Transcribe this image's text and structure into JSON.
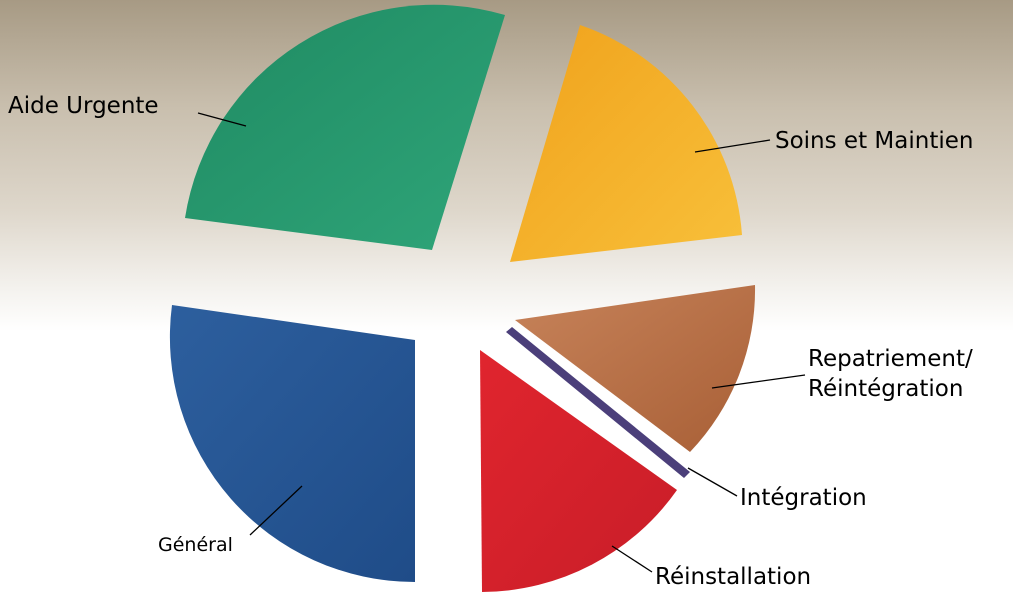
{
  "segments": [
    {
      "label": [
        "Aide Urgente"
      ]
    },
    {
      "label": [
        "Soins et Maintien"
      ]
    },
    {
      "label": [
        "Repatriement/",
        "Réintégration"
      ]
    },
    {
      "label": [
        "Intégration"
      ]
    },
    {
      "label": [
        "Réinstallation"
      ]
    },
    {
      "label": [
        "Général"
      ]
    }
  ]
}
